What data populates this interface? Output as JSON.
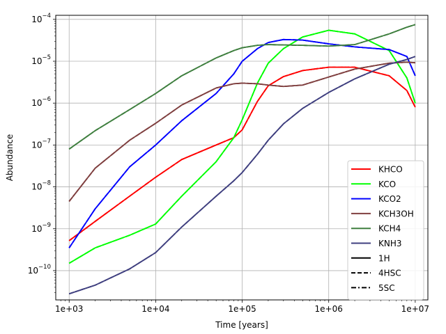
{
  "chart_data": {
    "type": "line",
    "title": "",
    "xlabel": "Time [years]",
    "ylabel": "Abundance",
    "xscale": "log",
    "yscale": "log",
    "xlim": [
      700,
      14000000
    ],
    "ylim": [
      2e-11,
      0.000125
    ],
    "grid": true,
    "legend_position": "lower-right",
    "x_ticks": [
      {
        "value": 1000,
        "label": "1e+03"
      },
      {
        "value": 10000,
        "label": "1e+04"
      },
      {
        "value": 100000,
        "label": "1e+05"
      },
      {
        "value": 1000000,
        "label": "1e+06"
      },
      {
        "value": 10000000,
        "label": "1e+07"
      }
    ],
    "y_ticks": [
      {
        "value": 1e-10,
        "base": "10",
        "exp": "−10"
      },
      {
        "value": 1e-09,
        "base": "10",
        "exp": "−9"
      },
      {
        "value": 1e-08,
        "base": "10",
        "exp": "−8"
      },
      {
        "value": 1e-07,
        "base": "10",
        "exp": "−7"
      },
      {
        "value": 1e-06,
        "base": "10",
        "exp": "−6"
      },
      {
        "value": 1e-05,
        "base": "10",
        "exp": "−5"
      },
      {
        "value": 0.0001,
        "base": "10",
        "exp": "−4"
      }
    ],
    "x": [
      1000,
      2000,
      5000,
      10000,
      20000,
      50000,
      80000,
      100000,
      150000,
      200000,
      300000,
      500000,
      1000000,
      2000000,
      5000000,
      8000000,
      10000000
    ],
    "series": [
      {
        "name": "KHCO",
        "color": "#ff0000",
        "values": [
          5.2e-10,
          1.5e-09,
          6e-09,
          1.7e-08,
          4.5e-08,
          1e-07,
          1.5e-07,
          2.3e-07,
          1.1e-06,
          2.6e-06,
          4.3e-06,
          6e-06,
          7.2e-06,
          7.2e-06,
          4.5e-06,
          2e-06,
          8e-07
        ]
      },
      {
        "name": "KCO",
        "color": "#00ff00",
        "values": [
          1.5e-10,
          3.5e-10,
          7e-10,
          1.3e-09,
          6e-09,
          4e-08,
          1.5e-07,
          4e-07,
          3e-06,
          9e-06,
          2e-05,
          3.8e-05,
          5.5e-05,
          4.5e-05,
          1.8e-05,
          4e-06,
          1e-06
        ]
      },
      {
        "name": "KCO2",
        "color": "#0000ff",
        "values": [
          3.5e-10,
          3e-09,
          3e-08,
          1e-07,
          3.8e-07,
          1.7e-06,
          5e-06,
          1e-05,
          2e-05,
          2.8e-05,
          3.3e-05,
          3.2e-05,
          2.6e-05,
          2.2e-05,
          1.9e-05,
          1.3e-05,
          4.5e-06
        ]
      },
      {
        "name": "KCH3OH",
        "color": "#7f3f3f",
        "values": [
          4.5e-09,
          2.8e-08,
          1.3e-07,
          3.3e-07,
          9e-07,
          2.3e-06,
          2.9e-06,
          3e-06,
          2.9e-06,
          2.7e-06,
          2.5e-06,
          2.7e-06,
          4.2e-06,
          6.5e-06,
          9e-06,
          9.5e-06,
          9.2e-06
        ]
      },
      {
        "name": "KCH4",
        "color": "#3f7f3f",
        "values": [
          8e-08,
          2.2e-07,
          7e-07,
          1.7e-06,
          4.5e-06,
          1.2e-05,
          1.8e-05,
          2.1e-05,
          2.4e-05,
          2.5e-05,
          2.45e-05,
          2.4e-05,
          2.3e-05,
          2.5e-05,
          4.5e-05,
          6.5e-05,
          7.5e-05
        ]
      },
      {
        "name": "KNH3",
        "color": "#3f3f7f",
        "values": [
          2.8e-11,
          4.5e-11,
          1.1e-10,
          2.7e-10,
          1.1e-09,
          6e-09,
          1.4e-08,
          2.2e-08,
          6e-08,
          1.3e-07,
          3.2e-07,
          7.5e-07,
          1.8e-06,
          3.8e-06,
          8.5e-06,
          1.1e-05,
          1.3e-05
        ]
      }
    ],
    "linestyles": [
      {
        "name": "1H",
        "dash": "solid"
      },
      {
        "name": "4HSC",
        "dash": "dashed"
      },
      {
        "name": "5SC",
        "dash": "dashdot"
      }
    ]
  }
}
